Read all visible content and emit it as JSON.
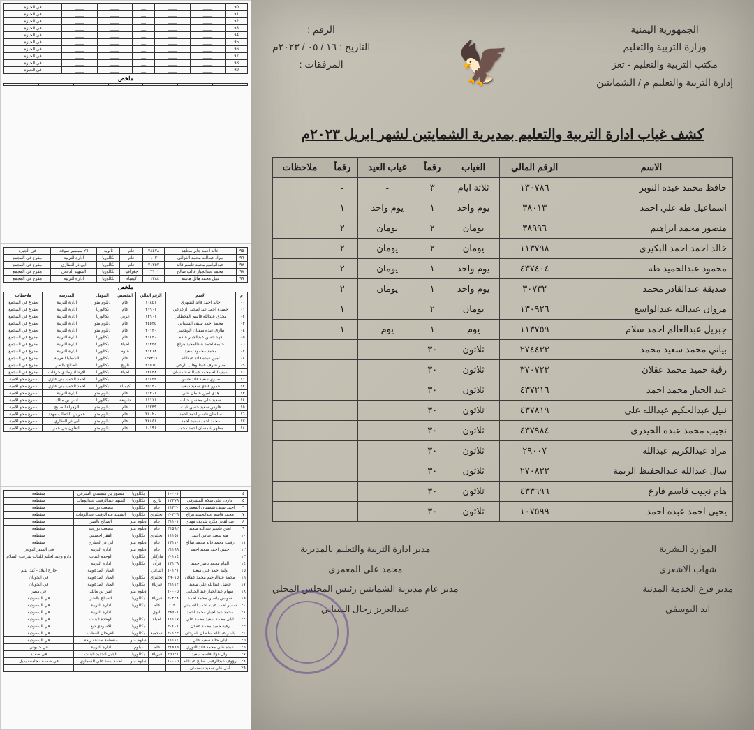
{
  "header": {
    "right_lines": [
      "الجمهورية اليمنية",
      "وزارة التربية والتعليم",
      "مكتب التربية والتعليم - تعز",
      "إدارة التربية والتعليم م / الشمايتين"
    ],
    "left_lines": [
      "الرقم :",
      "التاريخ : ١٦ / ٠٥ / ٢٠٢٣م",
      "المرفقات :"
    ]
  },
  "title": "كشف غياب ادارة التربية والتعليم بمديرية الشمايتين لشهر ابريل ٢٠٢٣م",
  "columns": [
    "الاسم",
    "الرقم المالي",
    "الغياب",
    "رقماً",
    "غياب العيد",
    "رقماً",
    "ملاحظات"
  ],
  "rows": [
    {
      "name": "حافظ محمد عبده النوبر",
      "fin": "١٣٠٧٨٦",
      "abs": "ثلاثة ايام",
      "absn": "٣",
      "eid": "-",
      "eidn": "-",
      "notes": ""
    },
    {
      "name": "اسماعيل طه علي احمد",
      "fin": "٣٨٠١٣",
      "abs": "يوم واحد",
      "absn": "١",
      "eid": "يوم واحد",
      "eidn": "١",
      "notes": ""
    },
    {
      "name": "منصور محمد ابراهيم",
      "fin": "٣٨٩٩٦",
      "abs": "يومان",
      "absn": "٢",
      "eid": "يومان",
      "eidn": "٢",
      "notes": ""
    },
    {
      "name": "خالد احمد احمد البكيري",
      "fin": "١١٣٧٩٨",
      "abs": "يومان",
      "absn": "٢",
      "eid": "يومان",
      "eidn": "٢",
      "notes": ""
    },
    {
      "name": "محمود عبدالحميد طه",
      "fin": "٤٣٧٤٠٤",
      "abs": "يوم واحد",
      "absn": "١",
      "eid": "يومان",
      "eidn": "٢",
      "notes": ""
    },
    {
      "name": "صديقة عبدالقادر محمد",
      "fin": "٣٠٧٣٢",
      "abs": "يوم واحد",
      "absn": "١",
      "eid": "يومان",
      "eidn": "٢",
      "notes": ""
    },
    {
      "name": "مروان عبدالله عبدالواسع",
      "fin": "١٣٠٩٢٦",
      "abs": "يومان",
      "absn": "٢",
      "eid": "",
      "eidn": "١",
      "notes": ""
    },
    {
      "name": "جبريل عبدالعالم احمد سلام",
      "fin": "١١٣٧٥٩",
      "abs": "يوم",
      "absn": "١",
      "eid": "يوم",
      "eidn": "١",
      "notes": ""
    },
    {
      "name": "بياني محمد سعيد محمد",
      "fin": "٢٧٤٤٣٣",
      "abs": "ثلاثون",
      "absn": "٣٠",
      "eid": "",
      "eidn": "",
      "notes": ""
    },
    {
      "name": "رقية حميد محمد عقلان",
      "fin": "٣٧٠٧٢٣",
      "abs": "ثلاثون",
      "absn": "٣٠",
      "eid": "",
      "eidn": "",
      "notes": ""
    },
    {
      "name": "عبد الجبار محمد احمد",
      "fin": "٤٣٧٢١٦",
      "abs": "ثلاثون",
      "absn": "٣٠",
      "eid": "",
      "eidn": "",
      "notes": ""
    },
    {
      "name": "نبيل عبدالحكيم عبدالله علي",
      "fin": "٤٣٧٨١٩",
      "abs": "ثلاثون",
      "absn": "٣٠",
      "eid": "",
      "eidn": "",
      "notes": ""
    },
    {
      "name": "نجيب محمد عبده الحيدري",
      "fin": "٤٣٧٩٨٤",
      "abs": "ثلاثون",
      "absn": "٣٠",
      "eid": "",
      "eidn": "",
      "notes": ""
    },
    {
      "name": "مراد عبدالكريم عبدالله",
      "fin": "٢٩٠٠٧",
      "abs": "ثلاثون",
      "absn": "٣٠",
      "eid": "",
      "eidn": "",
      "notes": ""
    },
    {
      "name": "سال عبدالله عبدالحفيظ الريمة",
      "fin": "٢٧٠٨٢٢",
      "abs": "ثلاثون",
      "absn": "٣٠",
      "eid": "",
      "eidn": "",
      "notes": ""
    },
    {
      "name": "هام نجيب قاسم فارع",
      "fin": "٤٣٣٦٩٦",
      "abs": "ثلاثون",
      "absn": "٣٠",
      "eid": "",
      "eidn": "",
      "notes": ""
    },
    {
      "name": "يحيى احمد عبده احمد",
      "fin": "١٠٧٥٩٩",
      "abs": "ثلاثون",
      "absn": "٣٠",
      "eid": "",
      "eidn": "",
      "notes": ""
    }
  ],
  "footer": {
    "right": [
      "الموارد البشرية",
      "شهاب الاشعري",
      "مدير فرع الخدمة المدنية",
      "ايد اليوسفي"
    ],
    "left": [
      "مدير ادارة التربية والتعليم بالمديرية",
      "محمد علي المعمري",
      "مدير عام مديرية الشمايتين رئيس المجلس المحلي",
      "عبدالعزيز رجال السباني"
    ]
  },
  "mini": {
    "title": "ملخص",
    "cols": [
      "م",
      "الاسم",
      "الرقم المالي",
      "التخصص",
      "المؤهل",
      "المدرسة",
      "ملاحظات"
    ],
    "sample_rows": [
      [
        "٩٥",
        "خالد احمد جابر مجاهد",
        "٢٨٤٧٨",
        "عام",
        "ثانوية",
        "٢٦ سبتمبر سوقة",
        "في الجيزة"
      ],
      [
        "٩٦",
        "مراد عبدالله محمد الغزالي",
        "١١٠٢١",
        "عام",
        "بكالوريا",
        "ادارة التربية",
        "مفرغ في المجمع"
      ],
      [
        "٩٧",
        "عبدالواسع محمد قاسم قائد",
        "٢١٢٥٢",
        "عام",
        "بكالوريا",
        "ابي ذر الغفاري",
        "مفرغ في المجمع"
      ],
      [
        "٩٨",
        "محمد عبدالجبار غالب صالح",
        "١٣١٠١",
        "جغرافيا",
        "بكالوريا",
        "الشهيد الدفعي",
        "مفرغ في المجمع"
      ],
      [
        "٩٩",
        "نبيل محمد هائل هاشم",
        "١١٢٨٤",
        "كيمياء",
        "بكالوريا",
        "ادارة التربية",
        "مفرغ في المجمع"
      ]
    ],
    "section2_start": 100,
    "section2_rows": [
      [
        "١٠٠",
        "خالد احمد قائد الشهري",
        "١٠٨٥١",
        "عام",
        "دبلوم متو",
        "ادارة التربية",
        "مفرغ في المجمع"
      ],
      [
        "١٠١",
        "حميدة احمد عبدالمجيد الزعزعي",
        "٣١٩٠١",
        "عام",
        "بكالوريا",
        "ادارة التربية",
        "مفرغ في المجمع"
      ],
      [
        "١٠٢",
        "مجدي عبدالله قاسم القحطاني",
        "١٢٩٠١",
        "عربي",
        "بكالوريا",
        "ادارة التربية",
        "مفرغ في المجمع"
      ],
      [
        "١٠٣",
        "محمد احمد سيف الشيباني",
        "٣٤٥٢٥",
        "عام",
        "دبلوم متو",
        "ادارة التربية",
        "مفرغ في المجمع"
      ],
      [
        "١٠٤",
        "طارق عبده سفيان الوهاشي",
        "٢٠١٢٠",
        "عام",
        "دبلوم متو",
        "ادارة التربية",
        "مفرغ في المجمع"
      ],
      [
        "١٠٥",
        "فهد حسن عبدالجبار عبده",
        "٣١٤٢٠",
        "عام",
        "بكالوريا",
        "ادارة التربية",
        "مفرغ في المجمع"
      ],
      [
        "١٠٦",
        "حليمة احمد عبدالمجيد هزاع",
        "١١٣٢٤",
        "احياء",
        "بكالوريا",
        "ادارة التربية",
        "مفرغ في المجمع"
      ],
      [
        "١٠٧",
        "محمد محمود سعيد",
        "٢١٢١٨",
        "علوم",
        "بكالوريا",
        "ادارة التربية",
        "مفرغ في المجمع"
      ],
      [
        "١٠٨",
        "امين عبده قائد عبدالله",
        "١٣٧٣٤١",
        "عام",
        "بكالوريا",
        "الشمايا الغربية",
        "مفرغ في المجمع"
      ],
      [
        "١٠٩",
        "منير شرف عبدالوهاب الرعي",
        "٢١٥١٥",
        "تاريخ",
        "بكالوريا",
        "الصالح بالضر",
        "مفرغ في المجمع"
      ],
      [
        "١١٠",
        "سيف الله محمد عبدالله شمسان",
        "١٣٨٣٨",
        "احياء",
        "بكالوريا",
        "الارشاد رمادي حرفات",
        "مفرغ في المجمع"
      ],
      [
        "١١١",
        "صبري سعيد قائد حسن",
        "٤١٨٣٣",
        "",
        "بكالوريا",
        "احمد الحميد بني غازي",
        "مفرغ محو الامية"
      ],
      [
        "١١٢",
        "عمرو هادي سعيد سعيد",
        "٣٥١٢٠",
        "كيمياء",
        "بكالوريا",
        "احمد الحميد بني غازي",
        "مفرغ محو الامية"
      ],
      [
        "١١٣",
        "هدى امين عثمان علي",
        "١١٣٠١",
        "عام",
        "دبلوم متو",
        "ادارة التربية",
        "مفرغ محو الامية"
      ],
      [
        "١١٤",
        "سعيد علي محسن جياب",
        "١١١١١",
        "شريعة",
        "بكالوريا",
        "انس بن مالك",
        "مفرغ محو الامية"
      ],
      [
        "١١٥",
        "فارس سعيد حسن ثابت",
        "١١٢٣٩",
        "عام",
        "دبلوم متو",
        "الزهراء الصليح",
        "مفرغ محو الامية"
      ],
      [
        "١١٦",
        "سلطان قاسم احمد احمد",
        "٣٨٠٢٠",
        "عام",
        "دبلوم متو",
        "عمر بن الخطاب مهدد",
        "مفرغ محو الامية"
      ],
      [
        "١١٧",
        "محمد احمد سعيد احمد",
        "٣٤٨٤١",
        "عام",
        "دبلوم متو",
        "ابي ذر الغفاري",
        "مفرغ محو الامية"
      ],
      [
        "١١٨",
        "مظهر شمسان احمد محمد",
        "١٠١٩١",
        "عام",
        "دبلوم متو",
        "التعاون بني عمر",
        "مفرغ محو الامية"
      ]
    ],
    "section3_rows": [
      [
        "٤",
        "",
        "١٠٠٠١",
        "",
        "بكالوريا",
        "منصور بن شمسان الشرقي",
        "منقطعة"
      ],
      [
        "٥",
        "عارف علي سلام المشرقي",
        "١٢٣٧٩",
        "تاريخ",
        "بكالوريا",
        "الشهد عبدالرقيب عبدالوهاب",
        "منقطعة"
      ],
      [
        "٦",
        "احمد سيف شمسان المعمري",
        "١١٣٢٠",
        "عام",
        "بكالوريا",
        "مصعب بورعيد",
        "منقطعة"
      ],
      [
        "٧",
        "محمد قاسم عبدالحميد هزاع",
        "٢٠٢٢٦",
        "انجليزي",
        "بكالوريا",
        "الشهيد عبدالرقيب عبدالوهاب",
        "منقطعة"
      ],
      [
        "٨",
        "عبدالقادر مكرد شريف مهدي",
        "٣١١٠١",
        "عام",
        "دبلوم متو",
        "الصالح بالضر",
        "منقطعة"
      ],
      [
        "٩",
        "امين قاسم عبدالله سعيد",
        "٣١٥٩٢",
        "عام",
        "دبلوم متو",
        "مصعب بورعيد",
        "منقطعة"
      ],
      [
        "١٠",
        "هبة سعيد عباس احمد",
        "١١١٥١",
        "انجليزي",
        "بكالوريا",
        "الفقر احميس",
        "منقطعة"
      ],
      [
        "١١",
        "رقيب محمد قائد محمد صالح",
        "١٣١١٠",
        "عام",
        "دبلوم متو",
        "ابي ذر الغفاري",
        "منقطعة"
      ],
      [
        "١٢",
        "حسن احمد سعيد احمد",
        "٢١١٩٩",
        "عام",
        "دبلوم متو",
        "ادارة التربية",
        "في السفر التوعي"
      ],
      [
        "١٣",
        "",
        "٢٠١١٤",
        "ماركلي",
        "بكالوريا",
        "الوحدة البنات",
        "دارو وعبدالحليم للبنات شرعب السلام"
      ],
      [
        "١٤",
        "الهام محمد ناصر حميد",
        "١٣١٢٩",
        "قرآن",
        "بكالوريا",
        "ادارة التربية",
        ""
      ],
      [
        "١٥",
        "وليد احمد علي سعيد",
        "١٠١٢١",
        "ابتدائي",
        "",
        "المنار المدعومة",
        "خارج البلاد - كندا يتيم"
      ],
      [
        "١٦",
        "محمد عبدالرحيم محمد عقلان",
        "٢٩٠١٥",
        "انجليزي",
        "بكالوريا",
        "المنار المدعومة",
        "في الجوبان"
      ],
      [
        "١٧",
        "فاضل عبدالله علي سعيد",
        "٢١١١٢",
        "فيزياء",
        "بكالوريا",
        "المنار المدعومة",
        "في الجوبان"
      ],
      [
        "١٨",
        "سهام عبدالجبار عبد الحياني",
        "١٠٠٠٥",
        "",
        "دبلوم متو",
        "انس بن مالك",
        "في مصر"
      ],
      [
        "١٩",
        "سوسن ياسين محمد احمد",
        "٢٠٢٢٨",
        "فيزياء",
        "بكالوريا",
        "الصالح بالضر",
        "في السعودية"
      ],
      [
        "٢٠",
        "سمير احمد عبده احمد الشيباني",
        "١٠٢٦",
        "علم",
        "بكالوريا",
        "ادارة التربية",
        "في السعودية"
      ],
      [
        "٢١",
        "محمد عبدالجبار محمد احمد",
        "٣٨٥٠١",
        "ثانوي",
        "",
        "ادارة التربية",
        "في السعودية"
      ],
      [
        "٢٢",
        "ليلى محمد سعيد محمد علي",
        "١١١٤٧",
        "احياء",
        "بكالوريا",
        "الوحدة البنات",
        "في السعودية"
      ],
      [
        "٢٣",
        "رقية حميد محمد عقلان",
        "٣٠٤٠١",
        "",
        "بكالوريا",
        "الأسودي دبع",
        "في السعودية"
      ],
      [
        "٢٤",
        "ياسر عبدالله سلطان الفرحان",
        "٢٠١٢٣",
        "اسلامية",
        "بكالوريا",
        "الفرحان القطب",
        "في السعودية"
      ],
      [
        "٢٥",
        "ليلى خالد سعيد علي",
        "١١١١٤",
        "",
        "دبلوم متو",
        "منقطعة صناعة ريعة",
        "في السعودية"
      ],
      [
        "٢٦",
        "عبده علي محمد قائد التوري",
        "٣٤٨٨٩",
        "علم",
        "دبلوم",
        "ادارة التربية",
        "في جيبوتي"
      ],
      [
        "٢٧",
        "نوال فؤاد قاسم سعيد",
        "٢٥٦٢١",
        "فيزياء",
        "بكالوريا",
        "الجيل الجديد البنات",
        "في صعدة"
      ],
      [
        "٢٨",
        "رؤوف عبدالرقيب صالح عبدالله",
        "١٠٠٠٥",
        "",
        "دبلوم متو",
        "احمد سعد علي السماوي",
        "في صعدة - جامعة يديل"
      ],
      [
        "٢٩",
        "أمل علي سعيد شمسان",
        "",
        "",
        "",
        "",
        ""
      ]
    ]
  },
  "colors": {
    "paper": "#c8c4b8",
    "border": "#3a3a3a",
    "stamp": "#5a3a8a",
    "side_bg": "#fafafa"
  }
}
